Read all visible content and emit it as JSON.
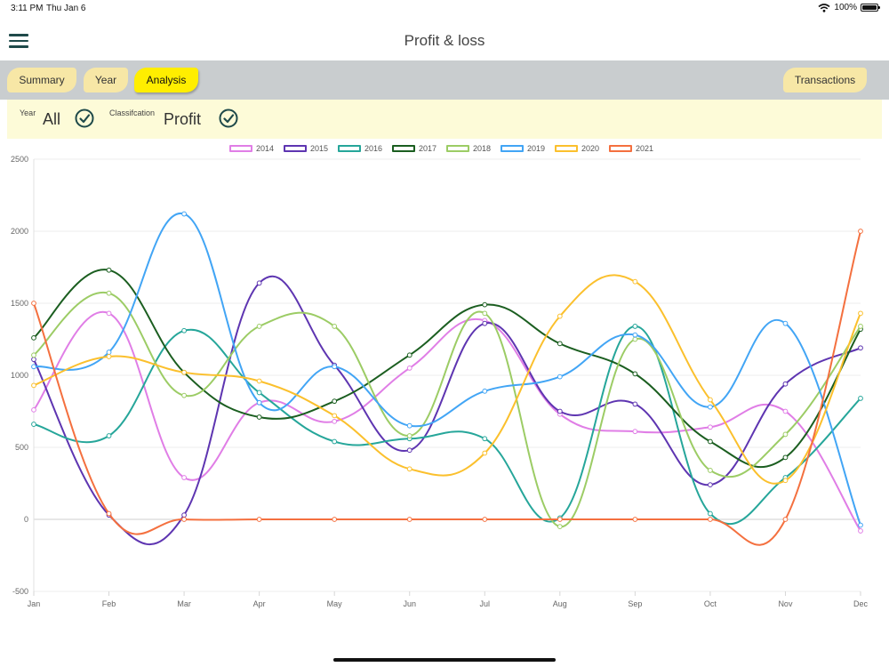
{
  "status": {
    "time": "3:11 PM",
    "date": "Thu Jan 6",
    "battery": "100%"
  },
  "header": {
    "title": "Profit & loss",
    "menu_icon": "hamburger-menu-icon"
  },
  "tabs": [
    {
      "label": "Summary",
      "active": false
    },
    {
      "label": "Year",
      "active": false
    },
    {
      "label": "Analysis",
      "active": true
    }
  ],
  "transactions_label": "Transactions",
  "filters": {
    "year": {
      "label": "Year",
      "value": "All",
      "icon": "check-circle-icon"
    },
    "classification": {
      "label": "Classifcation",
      "value": "Profit",
      "icon": "check-circle-icon"
    }
  },
  "colors": {
    "tab": "#f7e7a6",
    "tab_active": "#ffee00",
    "tab_bar": "#c9cdcf",
    "filter_bar": "#fdfbd8"
  },
  "chart_data": {
    "type": "line",
    "categories": [
      "Jan",
      "Feb",
      "Mar",
      "Apr",
      "May",
      "Jun",
      "Jul",
      "Aug",
      "Sep",
      "Oct",
      "Nov",
      "Dec"
    ],
    "ylim": [
      -500,
      2500
    ],
    "yticks": [
      -500,
      0,
      500,
      1000,
      1500,
      2000,
      2500
    ],
    "grid": true,
    "legend_position": "top",
    "series": [
      {
        "name": "2014",
        "color": "#e07ee6",
        "values": [
          760,
          1430,
          290,
          810,
          680,
          1050,
          1380,
          730,
          610,
          640,
          750,
          -80
        ]
      },
      {
        "name": "2015",
        "color": "#5e35b1",
        "values": [
          1110,
          30,
          30,
          1640,
          1070,
          480,
          1360,
          750,
          800,
          240,
          940,
          1190
        ]
      },
      {
        "name": "2016",
        "color": "#26a69a",
        "values": [
          660,
          580,
          1310,
          880,
          540,
          560,
          560,
          10,
          1340,
          40,
          290,
          840
        ]
      },
      {
        "name": "2017",
        "color": "#1b5e20",
        "values": [
          1260,
          1730,
          1020,
          710,
          820,
          1140,
          1490,
          1220,
          1010,
          540,
          430,
          1320
        ]
      },
      {
        "name": "2018",
        "color": "#9ccc65",
        "values": [
          1140,
          1570,
          860,
          1340,
          1340,
          580,
          1430,
          -50,
          1250,
          340,
          590,
          1340
        ]
      },
      {
        "name": "2019",
        "color": "#42a5f5",
        "values": [
          1060,
          1160,
          2120,
          810,
          1060,
          650,
          890,
          990,
          1280,
          780,
          1360,
          -40
        ]
      },
      {
        "name": "2020",
        "color": "#fbc02d",
        "values": [
          930,
          1130,
          1020,
          960,
          720,
          350,
          460,
          1410,
          1650,
          830,
          270,
          1430
        ]
      },
      {
        "name": "2021",
        "color": "#f4703f",
        "values": [
          1500,
          40,
          0,
          0,
          0,
          0,
          0,
          0,
          0,
          0,
          0,
          2000
        ]
      }
    ]
  }
}
